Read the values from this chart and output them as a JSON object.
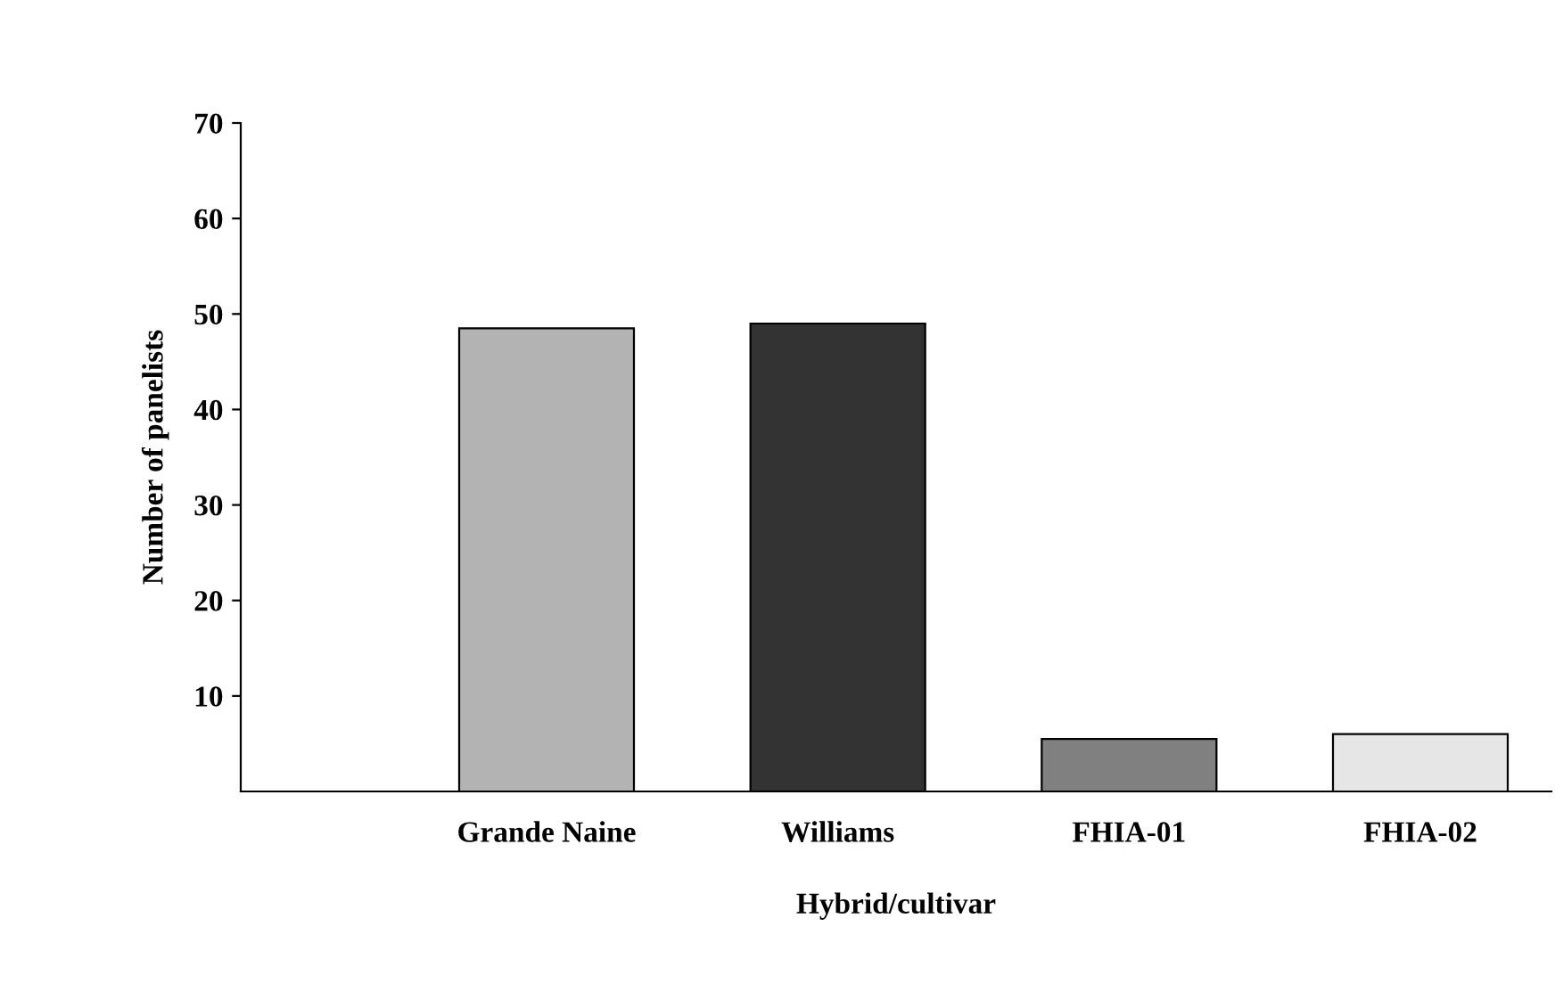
{
  "chart_data": {
    "type": "bar",
    "categories": [
      "Grande Naine",
      "Williams",
      "FHIA-01",
      "FHIA-02"
    ],
    "values": [
      48.5,
      49,
      5.5,
      6
    ],
    "colors": [
      "#b3b3b3",
      "#333333",
      "#808080",
      "#e6e6e6"
    ],
    "xlabel": "Hybrid/cultivar",
    "ylabel": "Number of panelists",
    "ylim": [
      0,
      70
    ],
    "yticks": [
      10,
      20,
      30,
      40,
      50,
      60,
      70
    ],
    "grid": false,
    "legend": false
  }
}
